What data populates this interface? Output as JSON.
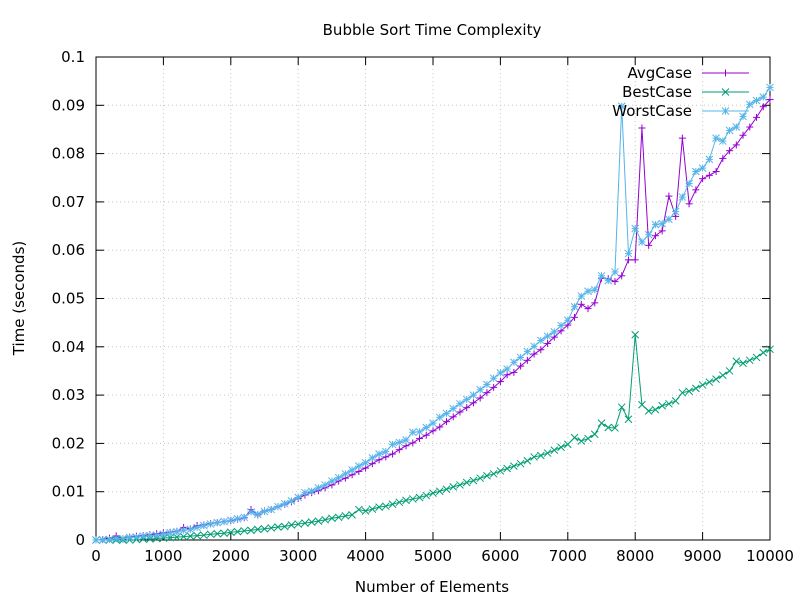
{
  "chart_data": {
    "type": "line",
    "title": "Bubble Sort Time Complexity",
    "xlabel": "Number of Elements",
    "ylabel": "Time (seconds)",
    "xlim": [
      0,
      10000
    ],
    "ylim": [
      0,
      0.1
    ],
    "xticks": [
      0,
      1000,
      2000,
      3000,
      4000,
      5000,
      6000,
      7000,
      8000,
      9000,
      10000
    ],
    "yticks": [
      0,
      0.01,
      0.02,
      0.03,
      0.04,
      0.05,
      0.06,
      0.07,
      0.08,
      0.09,
      0.1
    ],
    "xtick_labels": [
      "0",
      "1000",
      "2000",
      "3000",
      "4000",
      "5000",
      "6000",
      "7000",
      "8000",
      "9000",
      "10000"
    ],
    "ytick_labels": [
      "0",
      "0.01",
      "0.02",
      "0.03",
      "0.04",
      "0.05",
      "0.06",
      "0.07",
      "0.08",
      "0.09",
      "0.1"
    ],
    "grid": true,
    "legend_position": "top-right",
    "x": [
      0,
      100,
      200,
      300,
      400,
      500,
      600,
      700,
      800,
      900,
      1000,
      1100,
      1200,
      1300,
      1400,
      1500,
      1600,
      1700,
      1800,
      1900,
      2000,
      2100,
      2200,
      2300,
      2400,
      2500,
      2600,
      2700,
      2800,
      2900,
      3000,
      3100,
      3200,
      3300,
      3400,
      3500,
      3600,
      3700,
      3800,
      3900,
      4000,
      4100,
      4200,
      4300,
      4400,
      4500,
      4600,
      4700,
      4800,
      4900,
      5000,
      5100,
      5200,
      5300,
      5400,
      5500,
      5600,
      5700,
      5800,
      5900,
      6000,
      6100,
      6200,
      6300,
      6400,
      6500,
      6600,
      6700,
      6800,
      6900,
      7000,
      7100,
      7200,
      7300,
      7400,
      7500,
      7600,
      7700,
      7800,
      7900,
      8000,
      8100,
      8200,
      8300,
      8400,
      8500,
      8600,
      8700,
      8800,
      8900,
      9000,
      9100,
      9200,
      9300,
      9400,
      9500,
      9600,
      9700,
      9800,
      9900,
      10000
    ],
    "series": [
      {
        "name": "AvgCase",
        "color": "#9400d3",
        "marker": "plus",
        "values": [
          0,
          9e-05,
          0.00038,
          0.00085,
          0.0002,
          0.0006,
          0.0008,
          0.0009,
          0.0011,
          0.0013,
          0.0015,
          0.0016,
          0.0018,
          0.0026,
          0.0023,
          0.003,
          0.0031,
          0.0034,
          0.0036,
          0.0038,
          0.004,
          0.0043,
          0.0046,
          0.0063,
          0.0052,
          0.006,
          0.0063,
          0.0069,
          0.0074,
          0.0079,
          0.0086,
          0.0093,
          0.0098,
          0.0102,
          0.0108,
          0.0114,
          0.0122,
          0.0128,
          0.0135,
          0.0142,
          0.0149,
          0.0158,
          0.0166,
          0.0172,
          0.0178,
          0.0187,
          0.0195,
          0.0201,
          0.021,
          0.0217,
          0.0226,
          0.0234,
          0.0245,
          0.0255,
          0.0265,
          0.0274,
          0.0284,
          0.0294,
          0.0305,
          0.0316,
          0.0328,
          0.0342,
          0.0347,
          0.036,
          0.0372,
          0.0385,
          0.0394,
          0.0407,
          0.042,
          0.0433,
          0.0445,
          0.0461,
          0.0488,
          0.0479,
          0.0491,
          0.0542,
          0.0541,
          0.0535,
          0.0547,
          0.058,
          0.058,
          0.0853,
          0.061,
          0.063,
          0.064,
          0.0712,
          0.067,
          0.0832,
          0.0696,
          0.0725,
          0.0748,
          0.0755,
          0.0763,
          0.079,
          0.0806,
          0.0818,
          0.0838,
          0.0855,
          0.0875,
          0.0897,
          0.0912
        ]
      },
      {
        "name": "BestCase",
        "color": "#009e73",
        "marker": "cross",
        "values": [
          0,
          0,
          0,
          0,
          0,
          0,
          0.0001,
          0.0002,
          0.0002,
          0.0003,
          0.0004,
          0.0005,
          0.0006,
          0.0007,
          0.0008,
          0.0009,
          0.001,
          0.0012,
          0.0013,
          0.0014,
          0.0016,
          0.0017,
          0.0019,
          0.002,
          0.0022,
          0.0023,
          0.0025,
          0.0027,
          0.0028,
          0.0031,
          0.0033,
          0.0035,
          0.0037,
          0.0039,
          0.0042,
          0.0045,
          0.0047,
          0.005,
          0.0052,
          0.0063,
          0.006,
          0.0064,
          0.0068,
          0.007,
          0.0074,
          0.0078,
          0.0082,
          0.0085,
          0.0088,
          0.0092,
          0.0097,
          0.0101,
          0.0105,
          0.011,
          0.0114,
          0.0119,
          0.0123,
          0.0128,
          0.0133,
          0.0137,
          0.0143,
          0.0148,
          0.0153,
          0.0158,
          0.0164,
          0.0172,
          0.0175,
          0.018,
          0.0186,
          0.0192,
          0.0198,
          0.0212,
          0.0205,
          0.021,
          0.0219,
          0.0242,
          0.0233,
          0.0232,
          0.0275,
          0.025,
          0.0425,
          0.028,
          0.0267,
          0.027,
          0.0278,
          0.0282,
          0.0288,
          0.0305,
          0.0308,
          0.0314,
          0.0321,
          0.0327,
          0.0333,
          0.0341,
          0.035,
          0.037,
          0.0366,
          0.0372,
          0.0378,
          0.0388,
          0.0395
        ]
      },
      {
        "name": "WorstCase",
        "color": "#56b4e9",
        "marker": "star",
        "values": [
          0,
          5e-05,
          0.0001,
          0.00025,
          0.0003,
          0.0005,
          0.0006,
          0.0008,
          0.0009,
          0.001,
          0.0012,
          0.0015,
          0.0017,
          0.002,
          0.0022,
          0.0026,
          0.003,
          0.0033,
          0.0036,
          0.0038,
          0.0041,
          0.0044,
          0.0047,
          0.0058,
          0.0053,
          0.0059,
          0.0063,
          0.0069,
          0.0075,
          0.0081,
          0.0088,
          0.0098,
          0.0101,
          0.0108,
          0.0114,
          0.0122,
          0.0129,
          0.0137,
          0.0145,
          0.0153,
          0.016,
          0.017,
          0.0178,
          0.0183,
          0.0198,
          0.0202,
          0.0207,
          0.0223,
          0.0224,
          0.0233,
          0.0242,
          0.0254,
          0.0262,
          0.0272,
          0.0282,
          0.0291,
          0.03,
          0.0311,
          0.0322,
          0.0335,
          0.0346,
          0.0354,
          0.0368,
          0.0378,
          0.039,
          0.0401,
          0.0413,
          0.0422,
          0.0431,
          0.0444,
          0.0455,
          0.0483,
          0.0505,
          0.0515,
          0.0518,
          0.0547,
          0.0537,
          0.0555,
          0.0898,
          0.0593,
          0.0645,
          0.0617,
          0.0632,
          0.0653,
          0.0655,
          0.0664,
          0.068,
          0.071,
          0.0738,
          0.0763,
          0.077,
          0.0788,
          0.0832,
          0.0826,
          0.0848,
          0.0855,
          0.0877,
          0.0902,
          0.091,
          0.0917,
          0.0937
        ]
      }
    ]
  }
}
